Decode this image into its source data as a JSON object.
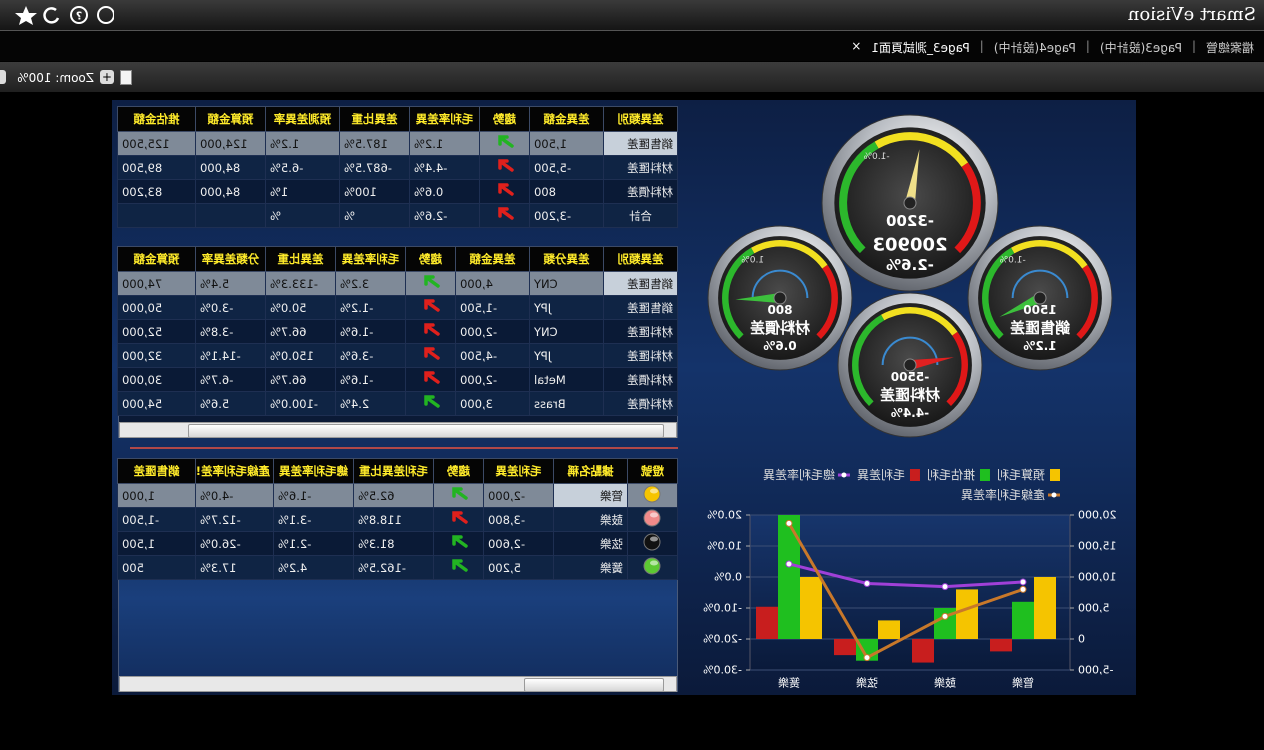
{
  "app": {
    "title": "Smart eVision",
    "tabs": [
      "檔案總管",
      "Page3(設計中)",
      "Page4(設計中)",
      "Page3_測試頁面1"
    ],
    "close": "×",
    "zoom": "Zoom: 100%"
  },
  "table1": {
    "headers": [
      "差異類別",
      "差異金額",
      "趨勢",
      "毛利率差異",
      "差異比重",
      "預測差異率",
      "預算金額",
      "推估金額"
    ],
    "rows": [
      [
        "銷售匯差",
        "1,500",
        "1.2%",
        "187.5%",
        "1.2%",
        "124,000",
        "125,500"
      ],
      [
        "材料匯差",
        "-5,500",
        "-4.4%",
        "-687.5%",
        "-6.5%",
        "84,000",
        "89,500"
      ],
      [
        "材料價差",
        "800",
        "0.6%",
        "100%",
        "1%",
        "84,000",
        "83,200"
      ],
      [
        "合計",
        "-3,200",
        "-2.6%",
        "%",
        "%",
        null,
        null
      ]
    ],
    "trend_colors": [
      "#22b422",
      "#e0201c",
      "#e0201c",
      "#e0201c"
    ]
  },
  "table2": {
    "headers": [
      "差異類別",
      "差異分類",
      "差異金額",
      "趨勢",
      "毛利率差異",
      "差異比重",
      "分類差異率",
      "預算金額"
    ],
    "rows": [
      [
        "銷售匯差",
        "CNY",
        "4,000",
        "3.2%",
        "-133.3%",
        "5.4%",
        "74,000"
      ],
      [
        "銷售匯差",
        "JPY",
        "-1,500",
        "-1.2%",
        "50.0%",
        "-3.0%",
        "50,000"
      ],
      [
        "材料匯差",
        "CNY",
        "-2,000",
        "-1.6%",
        "66.7%",
        "-3.8%",
        "52,000"
      ],
      [
        "材料匯差",
        "JPY",
        "-4,500",
        "-3.6%",
        "150.0%",
        "-14.1%",
        "32,000"
      ],
      [
        "材料價差",
        "Metal",
        "-2,000",
        "-1.6%",
        "66.7%",
        "-6.7%",
        "30,000"
      ],
      [
        "材料價差",
        "Brass",
        "3,000",
        "2.4%",
        "-100.0%",
        "5.6%",
        "54,000"
      ]
    ],
    "trend_colors": [
      "#22b422",
      "#e0201c",
      "#e0201c",
      "#e0201c",
      "#e0201c",
      "#22b422"
    ]
  },
  "table3": {
    "headers": [
      "燈號",
      "據點名稱",
      "毛利差異",
      "趨勢",
      "毛利差異比重",
      "總毛利率差異",
      "產線毛利率差!",
      "銷售匯差"
    ],
    "rows": [
      [
        "管樂",
        "-2,000",
        "62.5%",
        "-1.6%",
        "-4.0%",
        "1,000"
      ],
      [
        "鼓樂",
        "-3,800",
        "118.8%",
        "-3.1%",
        "-12.7%",
        "-1,500"
      ],
      [
        "弦樂",
        "-2,600",
        "81.3%",
        "-2.1%",
        "-26.0%",
        "1,500"
      ],
      [
        "簧樂",
        "5,200",
        "-162.5%",
        "4.2%",
        "17.3%",
        "500"
      ]
    ],
    "trend_colors": [
      "#22b422",
      "#e0201c",
      "#22b422",
      "#22b422"
    ],
    "light_colors": [
      "#f6c400",
      "#f08a8a",
      "#111111",
      "#5cc832"
    ]
  },
  "gauges": [
    {
      "name": "200903",
      "amount": "-3200",
      "percent": "-2.6%",
      "scale_label": "-1.0%"
    },
    {
      "name": "銷售匯差",
      "amount": "1500",
      "percent": "1.2%",
      "scale_label": "-1.0%"
    },
    {
      "name": "材料價差",
      "amount": "800",
      "percent": "0.6%",
      "scale_label": "1.0%"
    },
    {
      "name": "材料匯差",
      "amount": "-5500",
      "percent": "-4.4%"
    }
  ],
  "chart_data": {
    "type": "bar",
    "categories": [
      "管樂",
      "鼓樂",
      "弦樂",
      "簧樂"
    ],
    "series": [
      {
        "name": "預算毛利",
        "type": "bar",
        "color": "#f5c400",
        "values": [
          10000,
          8000,
          3000,
          10000
        ]
      },
      {
        "name": "推估毛利",
        "type": "bar",
        "color": "#1fbf1f",
        "values": [
          6000,
          5000,
          -3500,
          20000
        ]
      },
      {
        "name": "毛利差異",
        "type": "bar",
        "color": "#c81e1e",
        "values": [
          -2000,
          -3800,
          -2600,
          5200
        ]
      },
      {
        "name": "總毛利率差異",
        "type": "line",
        "axis": "y2",
        "color": "#a040d8",
        "values": [
          -1.6,
          -3.1,
          -2.1,
          4.2
        ]
      },
      {
        "name": "產線毛利率差異",
        "type": "line",
        "axis": "y2",
        "color": "#c8782a",
        "values": [
          -4.0,
          -12.7,
          -26.0,
          17.3
        ]
      }
    ],
    "ylim": [
      -5000,
      20000
    ],
    "yticks": [
      {
        "value": -5000,
        "label": "-5,000"
      },
      0,
      {
        "value": 5000,
        "label": "5,000"
      },
      {
        "value": 10000,
        "label": "10,000"
      },
      {
        "value": 15000,
        "label": "15,000"
      },
      {
        "value": 20000,
        "label": "20,000"
      }
    ],
    "y2lim": [
      -30,
      20
    ],
    "y2ticks": [
      {
        "value": -30,
        "label": "-30.0%"
      },
      {
        "value": -20,
        "label": "-20.0%"
      },
      {
        "value": -10,
        "label": "-10.0%"
      },
      {
        "value": 0,
        "label": "0.0%"
      },
      {
        "value": 10,
        "label": "10.0%"
      },
      {
        "value": 20,
        "label": "20.0%"
      }
    ],
    "grid": true
  }
}
